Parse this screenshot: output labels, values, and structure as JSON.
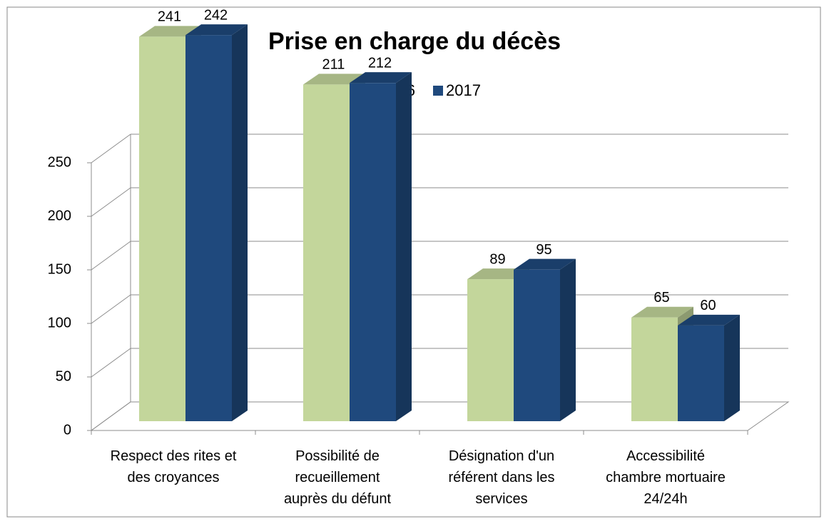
{
  "chart_data": {
    "type": "bar3d",
    "title": "Prise en charge du décès",
    "categories": [
      "Respect des rites et\ndes croyances",
      "Possibilité de\nrecueillement\nauprès du défunt",
      "Désignation d'un\nréférent dans les\nservices",
      "Accessibilité\nchambre mortuaire\n24/24h"
    ],
    "series": [
      {
        "name": "2016",
        "color": "#c3d69b",
        "values": [
          241,
          211,
          89,
          65
        ]
      },
      {
        "name": "2017",
        "color": "#1f497d",
        "values": [
          242,
          212,
          95,
          60
        ]
      }
    ],
    "ylim": [
      0,
      250
    ],
    "yticks": [
      0,
      50,
      100,
      150,
      200,
      250
    ],
    "grid": true,
    "legend": "top"
  }
}
